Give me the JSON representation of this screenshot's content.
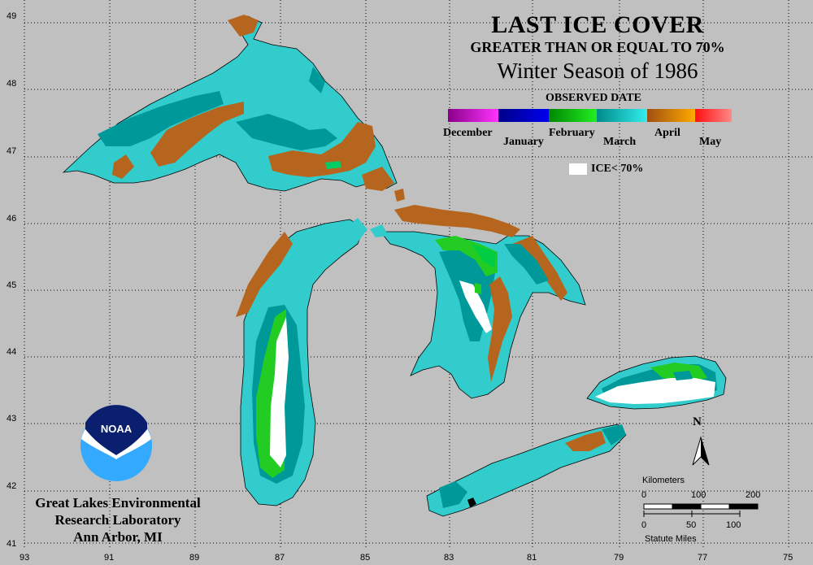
{
  "title": "LAST ICE COVER",
  "subtitle": "GREATER THAN OR EQUAL TO 70%",
  "season": "Winter Season of 1986",
  "legend": {
    "title": "OBSERVED DATE",
    "months": [
      "December",
      "January",
      "February",
      "March",
      "April",
      "May"
    ],
    "colors": [
      "#cc00cc",
      "#0000cc",
      "#00cc00",
      "#00a0a0",
      "#cc7a00",
      "#ff3030"
    ],
    "ice_label": "ICE< 70%",
    "ice_color": "#ffffff"
  },
  "latitudes": [
    "49",
    "48",
    "47",
    "46",
    "45",
    "44",
    "43",
    "42",
    "41"
  ],
  "longitudes": [
    "93",
    "91",
    "89",
    "87",
    "85",
    "83",
    "81",
    "79",
    "77",
    "75"
  ],
  "logo_text": "NOAA",
  "organization": [
    "Great Lakes Environmental",
    "Research Laboratory",
    "Ann Arbor, MI"
  ],
  "north_label": "N",
  "scale": {
    "km_label": "Kilometers",
    "km_ticks": [
      "0",
      "100",
      "200"
    ],
    "mi_ticks": [
      "0",
      "50",
      "100"
    ],
    "mi_label": "Statute Miles"
  },
  "colors": {
    "background": "#c0c0c0",
    "cyan": "#33cccc",
    "teal": "#009999",
    "brown": "#b5651d",
    "green": "#22cc22",
    "white": "#ffffff"
  }
}
